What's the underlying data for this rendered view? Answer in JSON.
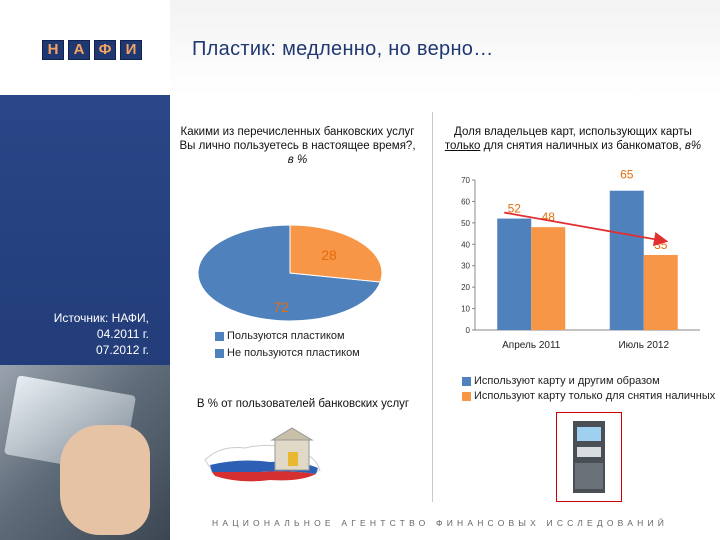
{
  "header": {
    "logo_letters": [
      "Н",
      "А",
      "Ф",
      "И"
    ],
    "title": "Пластик: медленно, но верно…"
  },
  "left_question": {
    "text": "Какими из перечисленных банковских услуг Вы лично пользуетесь в настоящее время?,",
    "unit": " в %"
  },
  "right_question": {
    "line1": "Доля владельцев карт, использующих карты",
    "line2_underlined": "только",
    "line2_rest": " для снятия наличных из банкоматов,",
    "unit": " в%"
  },
  "source": {
    "line1": "Источник: НАФИ,",
    "line2": "04.2011 г.",
    "line3": "07.2012 г."
  },
  "pie_caption": "В % от пользователей банковских услуг",
  "footer": "НАЦИОНАЛЬНОЕ АГЕНТСТВО ФИНАНСОВЫХ ИССЛЕДОВАНИЙ",
  "colors": {
    "blue": "#4f81bd",
    "orange": "#f79646",
    "label_orange": "#e46c0a",
    "arrow_red": "#e03030",
    "sidebar": "#25407e"
  },
  "chart_data": [
    {
      "type": "pie",
      "labels": [
        "Пользуются пластиком",
        "Не пользуются пластиком"
      ],
      "values": [
        72,
        28
      ],
      "legend_position": "bottom"
    },
    {
      "type": "bar",
      "categories": [
        "Апрель 2011",
        "Июль 2012"
      ],
      "series": [
        {
          "name": "Используют карту и другим образом",
          "values": [
            52,
            65
          ]
        },
        {
          "name": "Используют карту только для снятия наличных",
          "values": [
            48,
            35
          ]
        }
      ],
      "ylim": [
        0,
        70
      ],
      "yticks": [
        "0",
        "10",
        "20",
        "30",
        "40",
        "50",
        "60",
        "70"
      ],
      "grid": false,
      "legend_position": "bottom"
    }
  ]
}
